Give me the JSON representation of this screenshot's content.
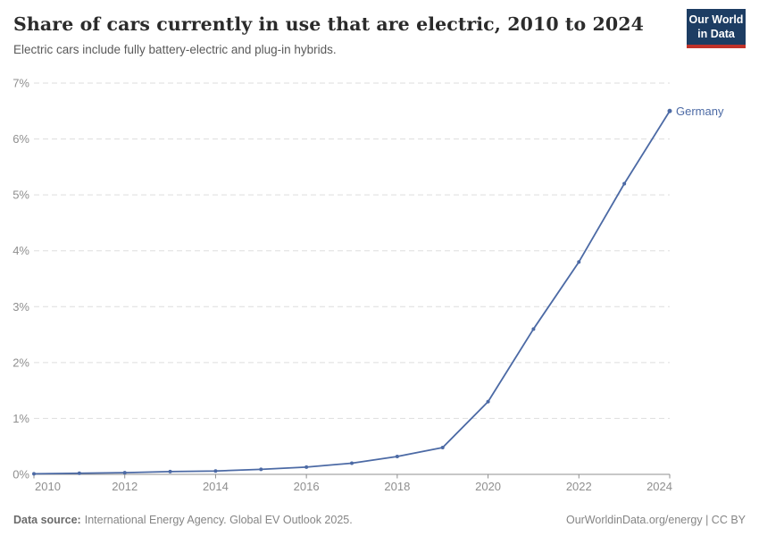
{
  "header": {
    "title": "Share of cars currently in use that are electric, 2010 to 2024",
    "subtitle": "Electric cars include fully battery-electric and plug-in hybrids."
  },
  "logo": {
    "line1": "Our World",
    "line2": "in Data"
  },
  "chart_data": {
    "type": "line",
    "title": "Share of cars currently in use that are electric, 2010 to 2024",
    "x": [
      2010,
      2011,
      2012,
      2013,
      2014,
      2015,
      2016,
      2017,
      2018,
      2019,
      2020,
      2021,
      2022,
      2023,
      2024
    ],
    "series": [
      {
        "name": "Germany",
        "color": "#4c6aa5",
        "values": [
          0.01,
          0.02,
          0.03,
          0.05,
          0.06,
          0.09,
          0.13,
          0.2,
          0.32,
          0.48,
          1.3,
          2.6,
          3.8,
          5.2,
          6.5
        ]
      }
    ],
    "xlabel": "",
    "ylabel": "",
    "ylim": [
      0,
      7
    ],
    "yticks": [
      0,
      1,
      2,
      3,
      4,
      5,
      6,
      7
    ],
    "ytick_suffix": "%",
    "xticks": [
      2010,
      2012,
      2014,
      2016,
      2018,
      2020,
      2022,
      2024
    ],
    "grid": "dashed-horizontal",
    "legend_position": "line-end-label"
  },
  "footer": {
    "source_label": "Data source:",
    "source_text": "International Energy Agency. Global EV Outlook 2025.",
    "link": "OurWorldinData.org/energy",
    "separator": " | ",
    "license": "CC BY"
  },
  "colors": {
    "series": "#4c6aa5",
    "axis": "#8f8f8f",
    "grid": "#dddddd",
    "tick_label": "#8f8f8f",
    "title": "#2b2b2b",
    "subtitle": "#595959",
    "logo_bg": "#1d3d63",
    "logo_bar": "#c0322a"
  }
}
